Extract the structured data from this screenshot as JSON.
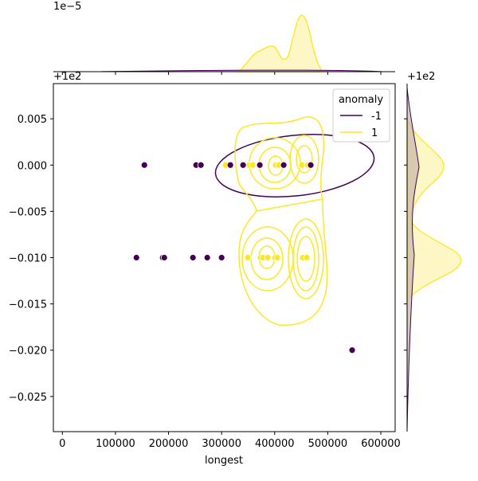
{
  "chart_data": {
    "type": "scatter",
    "kind": "jointplot with KDE contours and marginal KDEs",
    "xlabel": "longest",
    "ylabel": "",
    "x_offset_label": "+1e2",
    "y_offset_label": "+1e2",
    "top_marginal_scale_label": "1e−5",
    "right_marginal_offset_label": "+1e2",
    "xlim": [
      -17000,
      627000
    ],
    "ylim": [
      -0.0288,
      0.0088
    ],
    "xticks": [
      0,
      100000,
      200000,
      300000,
      400000,
      500000,
      600000
    ],
    "xtick_labels": [
      "0",
      "100000",
      "200000",
      "300000",
      "400000",
      "500000",
      "600000"
    ],
    "yticks": [
      0.005,
      0,
      -0.005,
      -0.01,
      -0.015,
      -0.02,
      -0.025
    ],
    "ytick_labels": [
      "0.005",
      "0.000",
      "−0.005",
      "−0.010",
      "−0.015",
      "−0.020",
      "−0.025"
    ],
    "legend": {
      "title": "anomaly",
      "placement": "top-right",
      "entries": [
        "-1",
        "1"
      ]
    },
    "series": [
      {
        "name": "-1",
        "color": "#440154",
        "points": [
          [
            154500,
            0
          ],
          [
            252000,
            0
          ],
          [
            261000,
            0
          ],
          [
            316500,
            0
          ],
          [
            340500,
            0
          ],
          [
            372000,
            0
          ],
          [
            417000,
            0
          ],
          [
            468000,
            0
          ],
          [
            139500,
            -0.01
          ],
          [
            189000,
            -0.01
          ],
          [
            192000,
            -0.01
          ],
          [
            246000,
            -0.01
          ],
          [
            273000,
            -0.01
          ],
          [
            300000,
            -0.01
          ],
          [
            546000,
            -0.02
          ]
        ]
      },
      {
        "name": "1",
        "color": "#fde725",
        "points": [
          [
            307500,
            0
          ],
          [
            352500,
            0
          ],
          [
            358500,
            0
          ],
          [
            402000,
            0
          ],
          [
            408000,
            0
          ],
          [
            451500,
            0
          ],
          [
            462000,
            0
          ],
          [
            349500,
            -0.01
          ],
          [
            373500,
            -0.01
          ],
          [
            378000,
            -0.01
          ],
          [
            387000,
            -0.01
          ],
          [
            400500,
            -0.01
          ],
          [
            405000,
            -0.01
          ],
          [
            453000,
            -0.01
          ],
          [
            460500,
            -0.01
          ]
        ]
      }
    ]
  }
}
